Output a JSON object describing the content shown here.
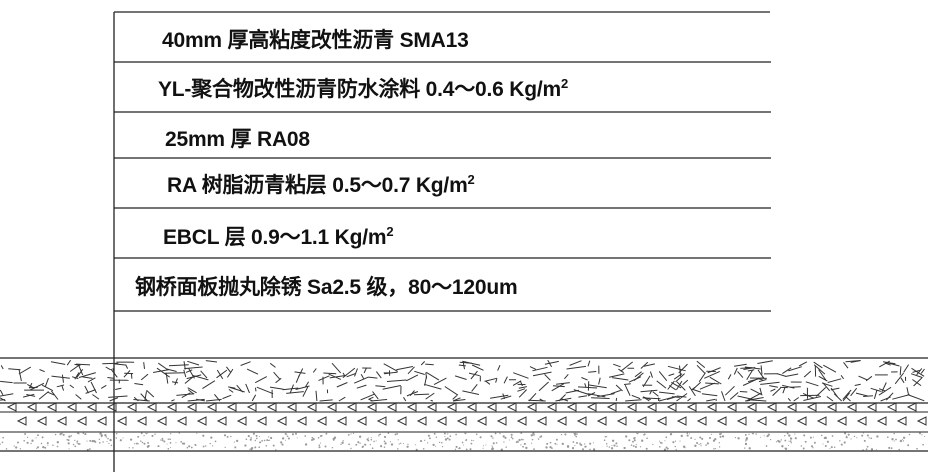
{
  "layers": [
    {
      "text": "40mm 厚高粘度改性沥青 SMA13",
      "sup": ""
    },
    {
      "text": "YL-聚合物改性沥青防水涂料 0.4～0.6 Kg/m",
      "sup": "2"
    },
    {
      "text": "25mm 厚 RA08",
      "sup": ""
    },
    {
      "text": "RA 树脂沥青粘层 0.5～0.7 Kg/m",
      "sup": "2"
    },
    {
      "text": "EBCL 层 0.9～1.1 Kg/m",
      "sup": "2"
    },
    {
      "text": "钢桥面板抛丸除锈 Sa2.5 级，80～120um",
      "sup": ""
    }
  ],
  "colors": {
    "line": "#222222",
    "text": "#111111",
    "hatch": "#333333",
    "speckle": "#9a9a9a"
  }
}
